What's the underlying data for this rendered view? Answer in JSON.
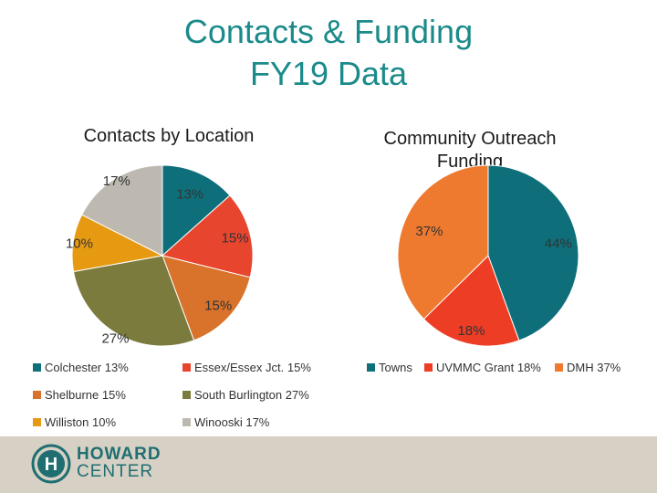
{
  "title_line1": "Contacts & Funding",
  "title_line2": "FY19 Data",
  "chart_data": [
    {
      "type": "pie",
      "title": "Contacts by Location",
      "categories": [
        "Colchester",
        "Essex/Essex Jct.",
        "Shelburne",
        "South Burlington",
        "Williston",
        "Winooski"
      ],
      "values": [
        13,
        15,
        15,
        27,
        10,
        17
      ],
      "labels": [
        "13%",
        "15%",
        "15%",
        "27%",
        "10%",
        "17%"
      ],
      "colors": [
        "#0e6f7a",
        "#e8452e",
        "#d9722a",
        "#7b7b3e",
        "#e69a12",
        "#bdb9b0"
      ],
      "legend": [
        "Colchester 13%",
        "Essex/Essex Jct. 15%",
        "Shelburne 15%",
        "South Burlington 27%",
        "Williston 10%",
        "Winooski 17%"
      ]
    },
    {
      "type": "pie",
      "title": "Community Outreach Funding",
      "categories": [
        "Towns",
        "UVMMC Grant",
        "DMH"
      ],
      "values": [
        44,
        18,
        37
      ],
      "labels": [
        "44%",
        "18%",
        "37%"
      ],
      "colors": [
        "#0e6f7a",
        "#ee3d25",
        "#ee7a30"
      ],
      "legend": [
        "Towns",
        "UVMMC Grant 18%",
        "DMH 37%"
      ]
    }
  ],
  "footer": {
    "logo_letter": "H",
    "brand_line1": "HOWARD",
    "brand_line2": "CENTER"
  }
}
